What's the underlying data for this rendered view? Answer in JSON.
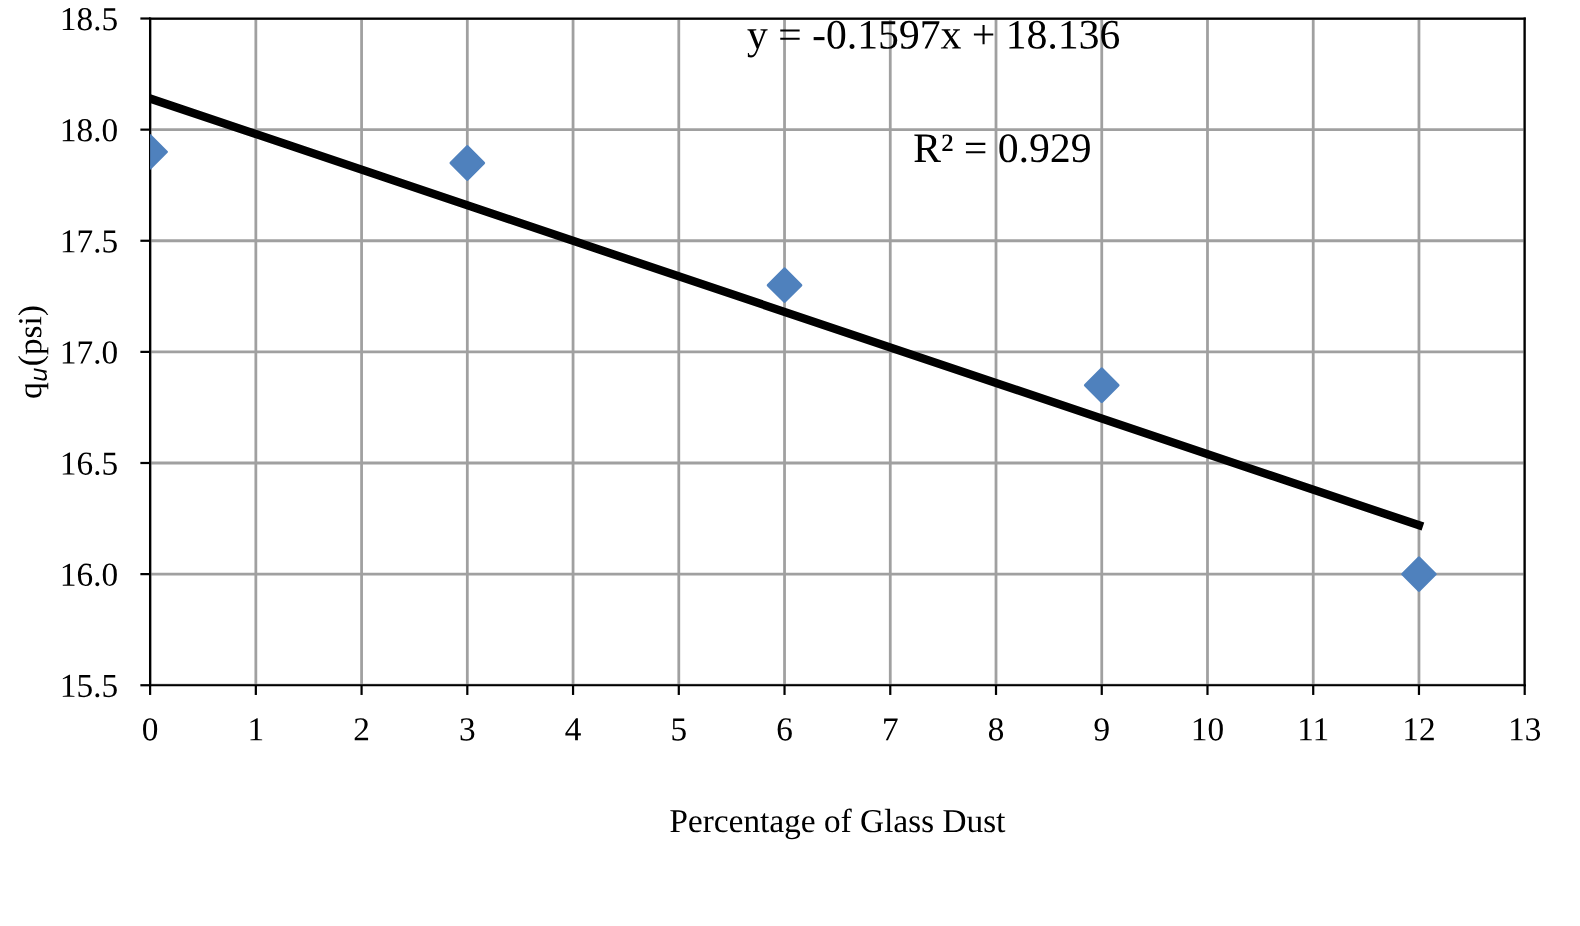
{
  "chart_data": {
    "type": "scatter",
    "xlabel": "Percentage of Glass Dust",
    "ylabel": "q$_{u}$(psi)",
    "annotations": [
      "y = -0.1597x + 18.136",
      "R² = 0.929"
    ],
    "series": [
      {
        "color": "#4f81bd",
        "marker": "diamond",
        "x": [
          0,
          3,
          6,
          9,
          12
        ],
        "values": [
          17.9,
          17.85,
          17.3,
          16.85,
          16.0
        ]
      },
      {
        "type": "line",
        "color": "#000000",
        "marker": "none",
        "line_style": "solid",
        "x": [
          0,
          12
        ],
        "values": [
          18.14,
          16.22
        ]
      }
    ],
    "xlim": [
      0,
      13
    ],
    "xticks": [
      0,
      1,
      2,
      3,
      4,
      5,
      6,
      7,
      8,
      9,
      10,
      11,
      12,
      13
    ],
    "ylim": [
      15.5,
      18.5
    ],
    "yticks": [
      {
        "value": 15.5,
        "label": "15.5"
      },
      {
        "value": 16.0,
        "label": "16.0"
      },
      {
        "value": 16.5,
        "label": "16.5"
      },
      {
        "value": 17.0,
        "label": "17.0"
      },
      {
        "value": 17.5,
        "label": "17.5"
      },
      {
        "value": 18.0,
        "label": "18.0"
      },
      {
        "value": 18.5,
        "label": "18.5"
      }
    ],
    "grid": true,
    "legend": false
  }
}
